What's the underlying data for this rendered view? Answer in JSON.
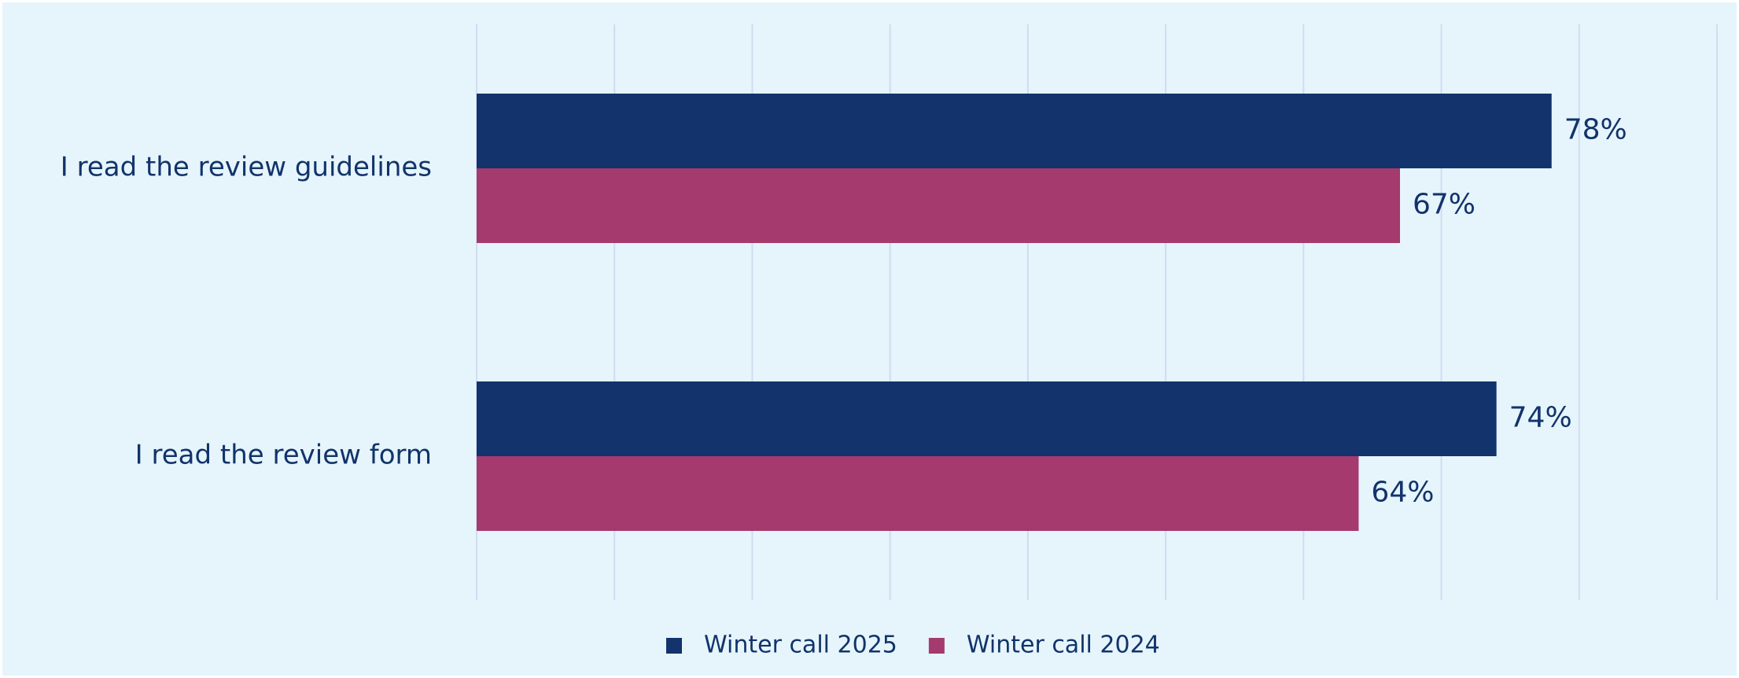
{
  "chart_data": {
    "type": "hbar",
    "categories": [
      "I read the review guidelines",
      "I read the review form"
    ],
    "series": [
      {
        "name": "Winter call 2025",
        "color": "#12336b",
        "values": [
          78,
          74
        ],
        "value_labels": [
          "78%",
          "74%"
        ]
      },
      {
        "name": "Winter call 2024",
        "color": "#a53a6f",
        "values": [
          67,
          64
        ],
        "value_labels": [
          "67%",
          "64%"
        ]
      }
    ],
    "xlim": [
      0,
      90
    ],
    "xticks": [
      0,
      10,
      20,
      30,
      40,
      50,
      60,
      70,
      80,
      90
    ],
    "grid": true,
    "legend": "bottom"
  }
}
